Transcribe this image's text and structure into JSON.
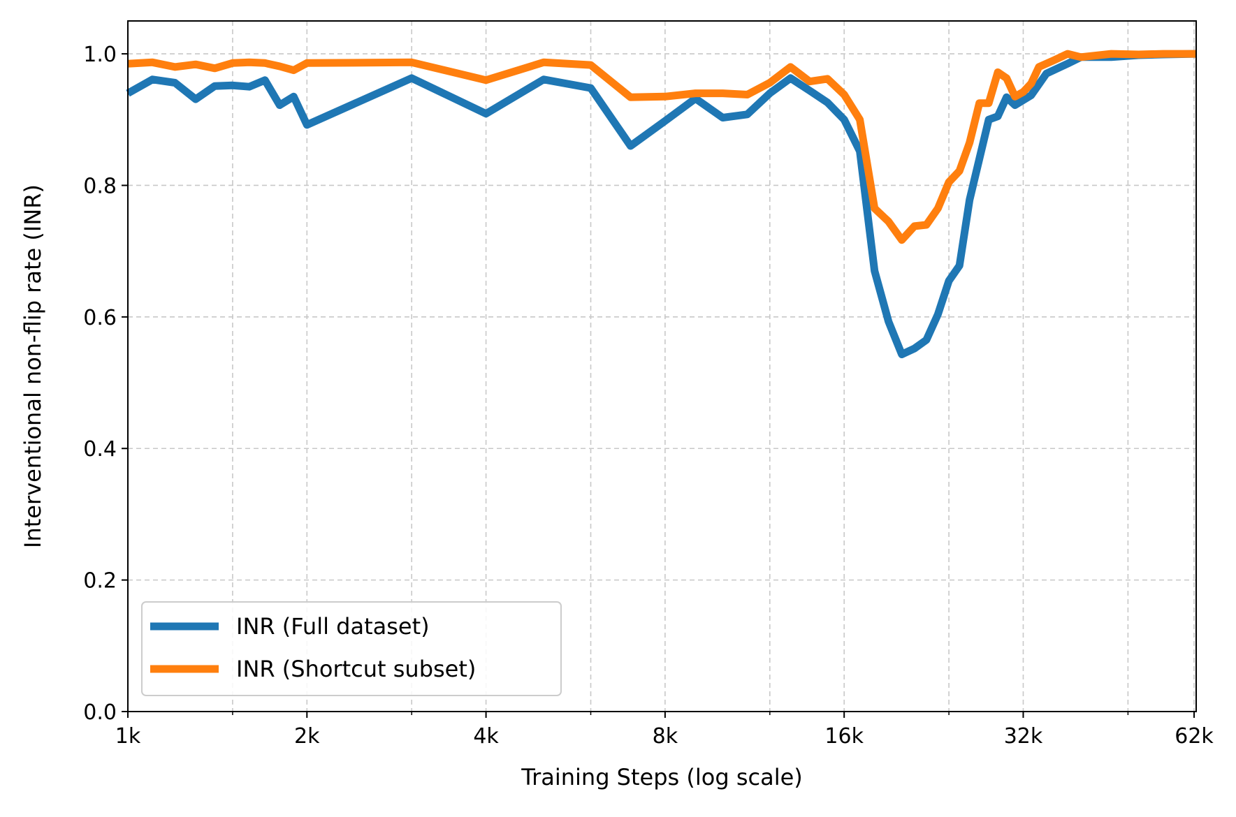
{
  "chart_data": {
    "type": "line",
    "title": "",
    "xlabel": "Training Steps (log scale)",
    "ylabel": "Interventional non-flip rate (INR)",
    "x_scale": "log2",
    "xlim": [
      1000,
      62500
    ],
    "ylim": [
      0,
      1.05
    ],
    "x_ticks": [
      {
        "value": 1000,
        "label": "1k"
      },
      {
        "value": 2000,
        "label": "2k"
      },
      {
        "value": 4000,
        "label": "4k"
      },
      {
        "value": 8000,
        "label": "8k"
      },
      {
        "value": 16000,
        "label": "16k"
      },
      {
        "value": 32000,
        "label": "32k"
      },
      {
        "value": 62000,
        "label": "62k"
      }
    ],
    "y_ticks": [
      {
        "value": 0.0,
        "label": "0.0"
      },
      {
        "value": 0.2,
        "label": "0.2"
      },
      {
        "value": 0.4,
        "label": "0.4"
      },
      {
        "value": 0.6,
        "label": "0.6"
      },
      {
        "value": 0.8,
        "label": "0.8"
      },
      {
        "value": 1.0,
        "label": "1.0"
      }
    ],
    "grid": true,
    "legend_position": "lower-left",
    "series": [
      {
        "name": "INR (Full dataset)",
        "color": "#1f77b4",
        "points": [
          [
            1000,
            0.94
          ],
          [
            1100,
            0.961
          ],
          [
            1200,
            0.956
          ],
          [
            1300,
            0.931
          ],
          [
            1400,
            0.951
          ],
          [
            1500,
            0.952
          ],
          [
            1600,
            0.95
          ],
          [
            1700,
            0.96
          ],
          [
            1800,
            0.922
          ],
          [
            1900,
            0.935
          ],
          [
            2000,
            0.892
          ],
          [
            3000,
            0.963
          ],
          [
            4000,
            0.909
          ],
          [
            5000,
            0.961
          ],
          [
            6000,
            0.948
          ],
          [
            7000,
            0.86
          ],
          [
            8000,
            0.898
          ],
          [
            9000,
            0.932
          ],
          [
            10000,
            0.903
          ],
          [
            11000,
            0.908
          ],
          [
            12000,
            0.94
          ],
          [
            13000,
            0.963
          ],
          [
            14000,
            0.944
          ],
          [
            15000,
            0.926
          ],
          [
            16000,
            0.9
          ],
          [
            17000,
            0.852
          ],
          [
            18000,
            0.67
          ],
          [
            19000,
            0.593
          ],
          [
            20000,
            0.543
          ],
          [
            21000,
            0.552
          ],
          [
            22000,
            0.565
          ],
          [
            23000,
            0.604
          ],
          [
            24000,
            0.655
          ],
          [
            25000,
            0.678
          ],
          [
            26000,
            0.778
          ],
          [
            28000,
            0.9
          ],
          [
            29000,
            0.905
          ],
          [
            30000,
            0.934
          ],
          [
            31000,
            0.922
          ],
          [
            33000,
            0.937
          ],
          [
            35000,
            0.97
          ],
          [
            38000,
            0.985
          ],
          [
            40000,
            0.995
          ],
          [
            45000,
            0.995
          ],
          [
            50000,
            0.998
          ],
          [
            55000,
            0.999
          ],
          [
            62500,
            1.0
          ]
        ]
      },
      {
        "name": "INR (Shortcut subset)",
        "color": "#ff7f0e",
        "points": [
          [
            1000,
            0.985
          ],
          [
            1100,
            0.987
          ],
          [
            1200,
            0.98
          ],
          [
            1300,
            0.984
          ],
          [
            1400,
            0.978
          ],
          [
            1500,
            0.986
          ],
          [
            1600,
            0.987
          ],
          [
            1700,
            0.986
          ],
          [
            1800,
            0.981
          ],
          [
            1900,
            0.975
          ],
          [
            2000,
            0.986
          ],
          [
            3000,
            0.987
          ],
          [
            4000,
            0.96
          ],
          [
            5000,
            0.987
          ],
          [
            6000,
            0.983
          ],
          [
            7000,
            0.934
          ],
          [
            8000,
            0.935
          ],
          [
            9000,
            0.94
          ],
          [
            10000,
            0.94
          ],
          [
            11000,
            0.938
          ],
          [
            12000,
            0.956
          ],
          [
            13000,
            0.98
          ],
          [
            14000,
            0.958
          ],
          [
            15000,
            0.962
          ],
          [
            16000,
            0.938
          ],
          [
            17000,
            0.9
          ],
          [
            18000,
            0.765
          ],
          [
            19000,
            0.745
          ],
          [
            20000,
            0.717
          ],
          [
            21000,
            0.738
          ],
          [
            22000,
            0.74
          ],
          [
            23000,
            0.765
          ],
          [
            24000,
            0.805
          ],
          [
            25000,
            0.822
          ],
          [
            26000,
            0.865
          ],
          [
            27000,
            0.925
          ],
          [
            28000,
            0.925
          ],
          [
            29000,
            0.972
          ],
          [
            30000,
            0.963
          ],
          [
            31000,
            0.935
          ],
          [
            32000,
            0.942
          ],
          [
            33000,
            0.955
          ],
          [
            34000,
            0.98
          ],
          [
            36000,
            0.99
          ],
          [
            38000,
            1.0
          ],
          [
            40000,
            0.995
          ],
          [
            45000,
            1.0
          ],
          [
            50000,
            0.999
          ],
          [
            55000,
            1.0
          ],
          [
            62500,
            1.0
          ]
        ]
      }
    ]
  }
}
